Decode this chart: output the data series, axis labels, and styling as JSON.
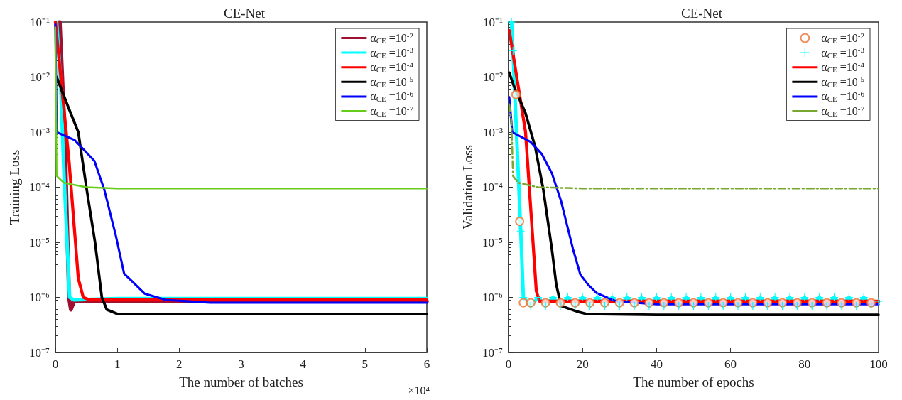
{
  "chart_data": [
    {
      "type": "line",
      "title": "CE-Net",
      "xlabel": "The number of batches",
      "ylabel": "Training Loss",
      "annotations": [
        "×10⁴"
      ],
      "log": "y",
      "legend": "top right",
      "marker": "none",
      "line_style": "solid",
      "grid": false,
      "xlim": [
        0,
        6
      ],
      "xticks": [
        0,
        1,
        2,
        3,
        4,
        5,
        6
      ],
      "ylim": [
        1e-07,
        0.1
      ],
      "yticks": [
        {
          "value": 1e-07,
          "label": "10⁻⁷"
        },
        {
          "value": 1e-06,
          "label": "10⁻⁶"
        },
        {
          "value": 1e-05,
          "label": "10⁻⁵"
        },
        {
          "value": 0.0001,
          "label": "10⁻⁴"
        },
        {
          "value": 0.001,
          "label": "10⁻³"
        },
        {
          "value": 0.01,
          "label": "10⁻²"
        },
        {
          "value": 0.1,
          "label": "10⁻¹"
        }
      ],
      "series": [
        {
          "name": "α$_{CE}$ =10$^{-2}$",
          "color": "#a01030",
          "x": [
            0.07,
            0.15,
            0.22,
            0.25,
            0.3,
            1,
            2,
            3,
            4,
            5,
            6
          ],
          "values": [
            0.1,
            0.001,
            1e-06,
            6e-07,
            8.5e-07,
            8.5e-07,
            8.5e-07,
            8.5e-07,
            8.5e-07,
            8.5e-07,
            8.5e-07
          ]
        },
        {
          "name": "α$_{CE}$ =10$^{-3}$",
          "color": "#00ffff",
          "x": [
            0.02,
            0.08,
            0.14,
            0.23,
            0.3,
            1,
            2,
            3,
            4,
            5,
            6
          ],
          "values": [
            0.1,
            0.01,
            0.00016,
            1e-06,
            9e-07,
            9.5e-07,
            9.5e-07,
            9.5e-07,
            9.5e-07,
            9.5e-07,
            9.5e-07
          ]
        },
        {
          "name": "α$_{CE}$ =10$^{-4}$",
          "color": "#ff0000",
          "x": [
            0,
            0.22,
            0.37,
            0.45,
            0.55,
            1,
            2,
            3,
            4,
            5,
            6
          ],
          "values": [
            0.1,
            0.0003,
            2.2e-06,
            1e-06,
            9e-07,
            9e-07,
            9e-07,
            9e-07,
            9e-07,
            9e-07,
            9e-07
          ]
        },
        {
          "name": "α$_{CE}$ =10$^{-5}$",
          "color": "#000000",
          "x": [
            0.02,
            0.2,
            0.37,
            0.5,
            0.64,
            0.75,
            0.83,
            1,
            2,
            3,
            4,
            5,
            6
          ],
          "values": [
            0.01,
            0.003,
            0.001,
            0.0001,
            1e-05,
            1e-06,
            6e-07,
            5e-07,
            5e-07,
            5e-07,
            5e-07,
            5e-07,
            5e-07
          ]
        },
        {
          "name": "α$_{CE}$ =10$^{-6}$",
          "color": "#0000ff",
          "x": [
            0,
            0.02,
            0.31,
            0.63,
            0.79,
            0.98,
            1.11,
            1.25,
            1.44,
            1.78,
            2.5,
            3,
            4,
            5,
            6
          ],
          "values": [
            0.09,
            0.001,
            0.00072,
            0.0003,
            9e-05,
            1.26e-05,
            2.7e-06,
            1.9e-06,
            1.17e-06,
            9e-07,
            8e-07,
            8e-07,
            8e-07,
            8e-07,
            8e-07
          ]
        },
        {
          "name": "α$_{CE}$ =10$^{-7}$",
          "color": "#66cc1a",
          "x": [
            0,
            0.02,
            0.14,
            0.5,
            1,
            2,
            3,
            4,
            5,
            6
          ],
          "values": [
            0.08,
            0.00016,
            0.00012,
            0.0001,
            9.5e-05,
            9.5e-05,
            9.5e-05,
            9.5e-05,
            9.5e-05,
            9.5e-05
          ]
        }
      ]
    },
    {
      "type": "line",
      "title": "CE-Net",
      "xlabel": "The number of epochs",
      "ylabel": "Validation Loss",
      "log": "y",
      "legend": "top right",
      "marker": "none",
      "line_style": "solid",
      "grid": false,
      "xlim": [
        0,
        100
      ],
      "xticks": [
        0,
        20,
        40,
        60,
        80,
        100
      ],
      "ylim": [
        1e-07,
        0.1
      ],
      "yticks": [
        {
          "value": 1e-07,
          "label": "10⁻⁷"
        },
        {
          "value": 1e-06,
          "label": "10⁻⁶"
        },
        {
          "value": 1e-05,
          "label": "10⁻⁵"
        },
        {
          "value": 0.0001,
          "label": "10⁻⁴"
        },
        {
          "value": 0.001,
          "label": "10⁻³"
        },
        {
          "value": 0.01,
          "label": "10⁻²"
        },
        {
          "value": 0.1,
          "label": "10⁻¹"
        }
      ],
      "series": [
        {
          "name": "α$_{CE}$ =10$^{-2}$",
          "color": "#f07030",
          "type": "scatter",
          "marker": "circle",
          "x": [
            2,
            3,
            4,
            6,
            10,
            14,
            18,
            22,
            26,
            30,
            34,
            38,
            42,
            46,
            50,
            54,
            58,
            62,
            66,
            70,
            74,
            78,
            82,
            86,
            90,
            94,
            98
          ],
          "values": [
            0.0048,
            2.4e-05,
            8e-07,
            8e-07,
            8e-07,
            8e-07,
            8e-07,
            8e-07,
            8e-07,
            8e-07,
            8e-07,
            8e-07,
            8e-07,
            8e-07,
            8e-07,
            8e-07,
            8e-07,
            8e-07,
            8e-07,
            8e-07,
            8e-07,
            8e-07,
            8e-07,
            8e-07,
            8e-07,
            8e-07,
            8e-07
          ]
        },
        {
          "name": "α$_{CE}$ =10$^{-3}$",
          "color": "#00ffff",
          "marker": "cross",
          "x": [
            0.8,
            1.2,
            3.3,
            4,
            6,
            8,
            10,
            12,
            14,
            16,
            18,
            20,
            22,
            24,
            26,
            28,
            30,
            32,
            34,
            36,
            38,
            40,
            42,
            44,
            46,
            48,
            50,
            52,
            54,
            56,
            58,
            60,
            62,
            64,
            66,
            68,
            70,
            72,
            74,
            76,
            78,
            80,
            82,
            84,
            86,
            88,
            90,
            92,
            94,
            96,
            98,
            100
          ],
          "values": [
            0.1,
            0.03,
            1.6e-05,
            1e-06,
            7e-07,
            1e-06,
            7e-07,
            1e-06,
            7e-07,
            1e-06,
            7e-07,
            1e-06,
            7e-07,
            1e-06,
            7e-07,
            1e-06,
            7e-07,
            1e-06,
            7e-07,
            1e-06,
            7e-07,
            1e-06,
            7e-07,
            1e-06,
            7e-07,
            1e-06,
            7e-07,
            1e-06,
            7e-07,
            1e-06,
            7e-07,
            1e-06,
            7e-07,
            1e-06,
            7e-07,
            1e-06,
            7e-07,
            1e-06,
            7e-07,
            1e-06,
            7e-07,
            1e-06,
            7e-07,
            1e-06,
            7e-07,
            1e-06,
            7e-07,
            1e-06,
            7e-07,
            1e-06,
            7e-07,
            8.5e-07
          ]
        },
        {
          "name": "α$_{CE}$ =10$^{-4}$",
          "color": "#ff0000",
          "x": [
            0.2,
            4.6,
            6.5,
            7.5,
            8.4,
            20,
            40,
            60,
            80,
            100
          ],
          "values": [
            0.07,
            0.001,
            1.3e-05,
            1.3e-06,
            8.5e-07,
            8.5e-07,
            8.5e-07,
            8.5e-07,
            8.5e-07,
            8.5e-07
          ]
        },
        {
          "name": "α$_{CE}$ =10$^{-5}$",
          "color": "#000000",
          "x": [
            0.2,
            1.4,
            4.6,
            7.2,
            9.4,
            11.7,
            12.9,
            14.2,
            18.6,
            21,
            40,
            60,
            80,
            100
          ],
          "values": [
            0.012,
            0.007,
            0.0022,
            0.00054,
            9e-05,
            7.6e-06,
            1.7e-06,
            7e-07,
            5.5e-07,
            5e-07,
            4.8e-07,
            4.8e-07,
            4.8e-07,
            4.8e-07
          ]
        },
        {
          "name": "α$_{CE}$ =10$^{-6}$",
          "color": "#0000ff",
          "x": [
            0.2,
            1,
            6,
            9,
            11.7,
            14.2,
            17.4,
            19.4,
            21.5,
            23.8,
            29,
            40,
            60,
            80,
            100
          ],
          "values": [
            0.0043,
            0.001,
            0.00066,
            0.0004,
            0.00018,
            5.6e-05,
            7.6e-06,
            2.6e-06,
            1.7e-06,
            1.2e-06,
            8.5e-07,
            7.5e-07,
            7.5e-07,
            7.5e-07,
            7.5e-07
          ]
        },
        {
          "name": "α$_{CE}$ =10$^{-7}$",
          "color": "#77a830",
          "line_style": "dashed",
          "x": [
            0.2,
            0.8,
            1.2,
            2.7,
            7.9,
            20,
            40,
            60,
            80,
            100
          ],
          "values": [
            0.0032,
            0.0015,
            0.00016,
            0.00012,
            0.0001,
            9.5e-05,
            9.5e-05,
            9.5e-05,
            9.5e-05,
            9.5e-05
          ]
        }
      ]
    }
  ]
}
